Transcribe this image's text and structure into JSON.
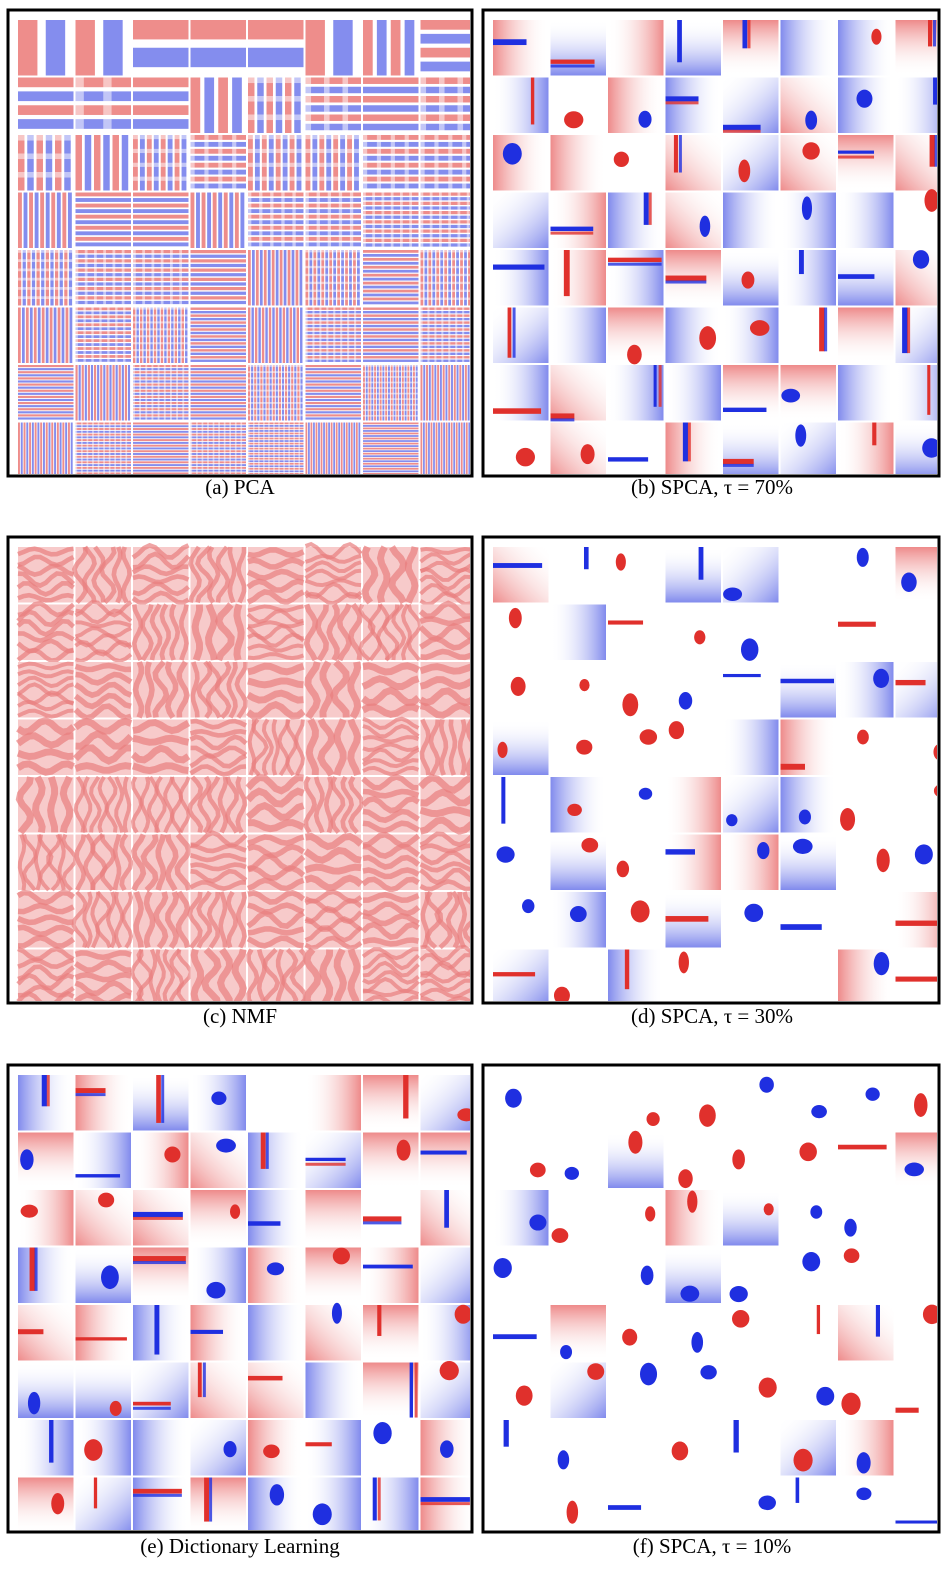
{
  "figure": {
    "panels": [
      {
        "caption": "(a) PCA"
      },
      {
        "caption": "(b) SPCA, τ = 70%"
      },
      {
        "caption": "(c) NMF"
      },
      {
        "caption": "(d) SPCA, τ = 30%"
      },
      {
        "caption": "(e) Dictionary Learning"
      },
      {
        "caption": "(f) SPCA, τ = 10%"
      }
    ]
  }
}
